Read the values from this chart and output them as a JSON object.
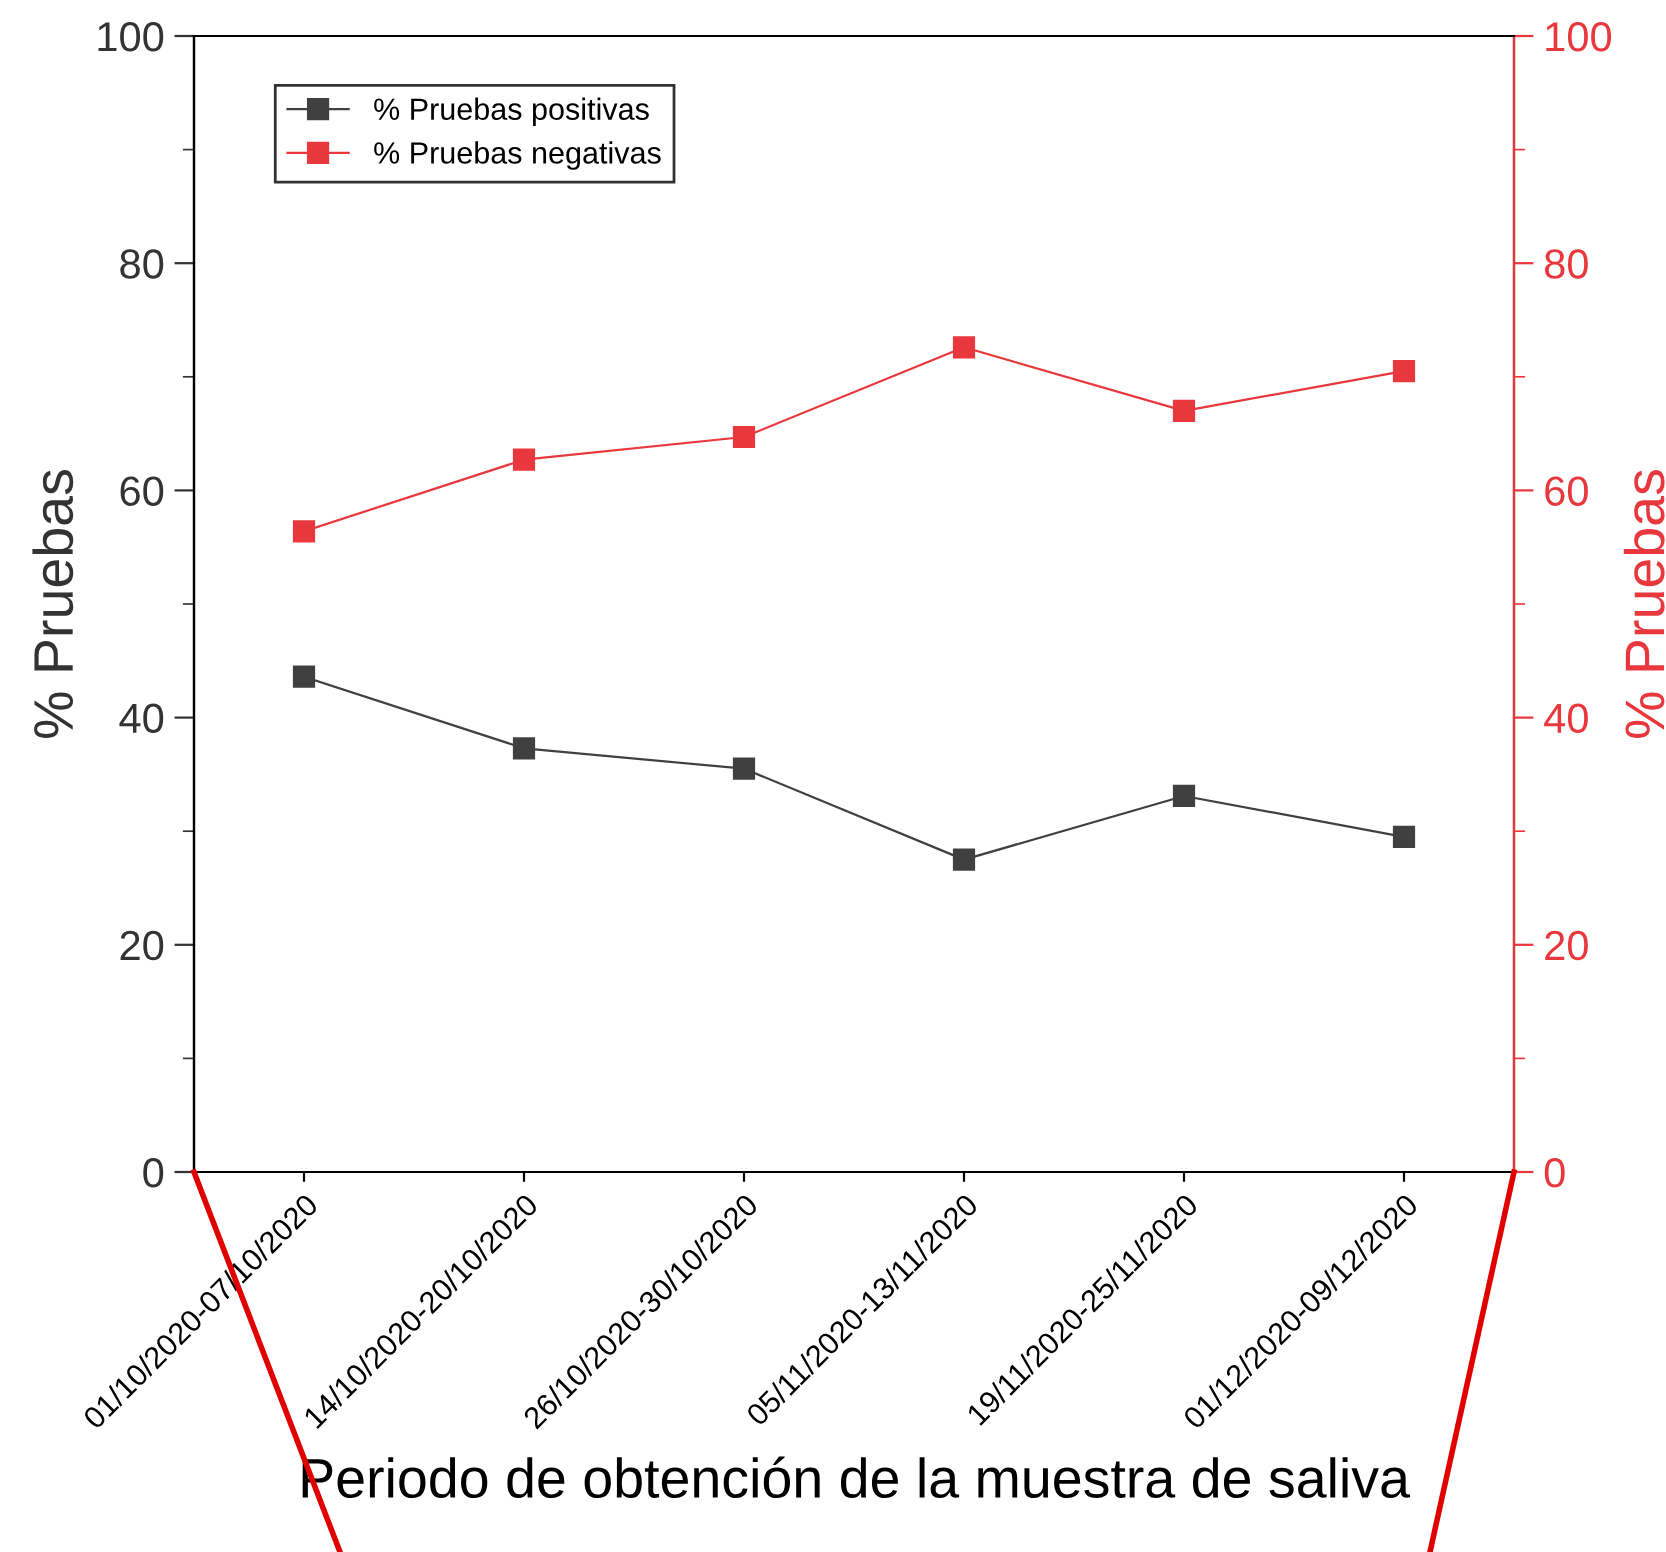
{
  "chart_data": {
    "type": "line",
    "xlabel": "Periodo de obtención de la muestra de saliva",
    "ylabel": "% Pruebas",
    "y2label": "% Pruebas",
    "categories": [
      "01/10/2020-07/10/2020",
      "14/10/2020-20/10/2020",
      "26/10/2020-30/10/2020",
      "05/11/2020-13/11/2020",
      "19/11/2020-25/11/2020",
      "01/12/2020-09/12/2020"
    ],
    "series": [
      {
        "name": "% Pruebas positivas",
        "color": "#404040",
        "values": [
          43.6,
          37.3,
          35.5,
          27.5,
          33.1,
          29.5
        ]
      },
      {
        "name": "% Pruebas negativas",
        "color": "#e8383d",
        "values": [
          56.4,
          62.7,
          64.7,
          72.6,
          67.0,
          70.5
        ]
      }
    ],
    "ylim": [
      0,
      100
    ],
    "yticks": [
      0,
      20,
      40,
      60,
      80,
      100
    ],
    "y2lim": [
      0,
      100
    ],
    "y2ticks": [
      0,
      20,
      40,
      60,
      80,
      100
    ],
    "marker": "square",
    "line_style": "solid",
    "legend": "top left",
    "grid": false
  }
}
